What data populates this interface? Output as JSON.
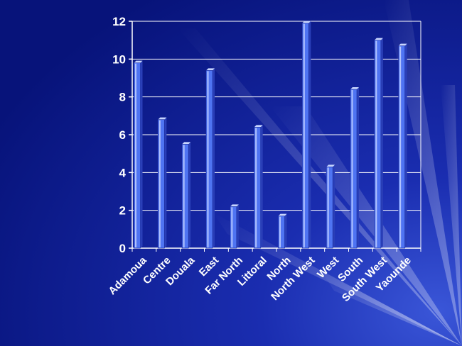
{
  "chart_data": {
    "type": "bar",
    "title": "",
    "xlabel": "",
    "ylabel": "",
    "categories": [
      "Adamoua",
      "Centre",
      "Douala",
      "East",
      "Far North",
      "Littoral",
      "North",
      "North West",
      "West",
      "South",
      "South West",
      "Yaounde"
    ],
    "values": [
      9.8,
      6.8,
      5.5,
      9.4,
      2.2,
      6.4,
      1.7,
      11.9,
      4.3,
      8.4,
      11.0,
      10.7
    ],
    "ylim": [
      0,
      12
    ],
    "yticks": [
      0,
      2,
      4,
      6,
      8,
      10,
      12
    ],
    "grid": true,
    "legend": "none"
  },
  "colors": {
    "background": "#0a1a8c",
    "bar_front": "#4f74f2",
    "bar_highlight": "#c9d6ff",
    "bar_side": "#2a3fb8",
    "axis": "#ffffff",
    "grid": "#ffffff"
  }
}
